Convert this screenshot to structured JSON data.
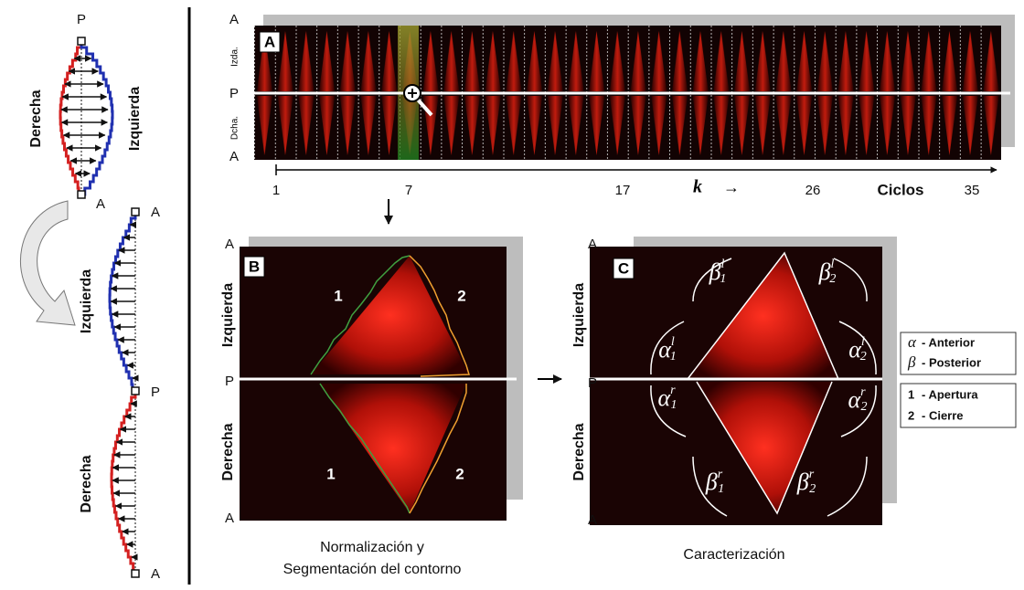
{
  "left_panel": {
    "top": {
      "p_label": "P",
      "right_side": "Derecha",
      "left_side": "Izquierda",
      "a_label": "A"
    },
    "bottom": {
      "a_top": "A",
      "left_side": "Izquierda",
      "p_label": "P",
      "right_side": "Derecha",
      "a_bottom": "A"
    }
  },
  "panel_a": {
    "letter": "A",
    "side_labels": [
      "A",
      "P",
      "A"
    ],
    "izda": "Izda.",
    "dcha": "Dcha.",
    "ticks": [
      "1",
      "7",
      "17",
      "26",
      "35"
    ],
    "k": "k",
    "k_arrow": "→",
    "axis_label": "Ciclos"
  },
  "panel_b": {
    "letter": "B",
    "side_labels": [
      "A",
      "P",
      "A"
    ],
    "upper_side": "Izquierda",
    "lower_side": "Derecha",
    "segments": [
      "1",
      "2",
      "1",
      "2"
    ],
    "caption": [
      "Normalización y",
      "Segmentación del contorno"
    ]
  },
  "panel_c": {
    "letter": "C",
    "side_labels": [
      "A",
      "P",
      "A"
    ],
    "upper_side": "Izquierda",
    "lower_side": "Derecha",
    "angles": [
      {
        "symbol": "β",
        "sub": "1",
        "sup": "l"
      },
      {
        "symbol": "β",
        "sub": "2",
        "sup": "l"
      },
      {
        "symbol": "α",
        "sub": "1",
        "sup": "l"
      },
      {
        "symbol": "α",
        "sub": "2",
        "sup": "l"
      },
      {
        "symbol": "α",
        "sub": "1",
        "sup": "r"
      },
      {
        "symbol": "α",
        "sub": "2",
        "sup": "r"
      },
      {
        "symbol": "β",
        "sub": "1",
        "sup": "r"
      },
      {
        "symbol": "β",
        "sub": "2",
        "sup": "r"
      }
    ],
    "caption": "Caracterización"
  },
  "legend": {
    "greek": [
      {
        "symbol": "α",
        "text": "- Anterior"
      },
      {
        "symbol": "β",
        "text": "- Posterior"
      }
    ],
    "numbers": [
      {
        "symbol": "1",
        "text": "- Apertura"
      },
      {
        "symbol": "2",
        "text": "- Cierre"
      }
    ]
  }
}
